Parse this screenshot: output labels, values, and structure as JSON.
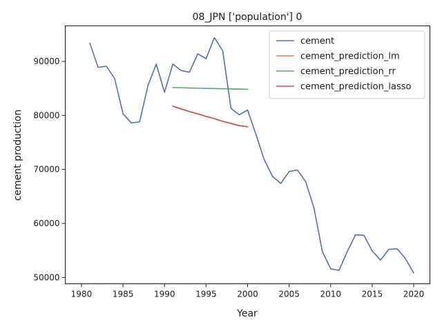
{
  "chart_data": {
    "type": "line",
    "title": "08_JPN ['population'] 0",
    "xlabel": "Year",
    "ylabel": "cement production",
    "xlim": [
      1978.05,
      2021.95
    ],
    "ylim": [
      48820,
      96580
    ],
    "xticks": [
      1980,
      1985,
      1990,
      1995,
      2000,
      2005,
      2010,
      2015,
      2020
    ],
    "yticks": [
      50000,
      60000,
      70000,
      80000,
      90000
    ],
    "xtick_labels": [
      "1980",
      "1985",
      "1990",
      "1995",
      "2000",
      "2005",
      "2010",
      "2015",
      "2020"
    ],
    "ytick_labels": [
      "50000",
      "60000",
      "70000",
      "80000",
      "90000"
    ],
    "grid": false,
    "legend_position": "top-right",
    "series": [
      {
        "name": "cement",
        "color": "#4c72b0",
        "x": [
          1981,
          1982,
          1983,
          1984,
          1985,
          1986,
          1987,
          1988,
          1989,
          1990,
          1991,
          1992,
          1993,
          1994,
          1995,
          1996,
          1997,
          1998,
          1999,
          2000,
          2001,
          2002,
          2003,
          2004,
          2005,
          2006,
          2007,
          2008,
          2009,
          2010,
          2011,
          2012,
          2013,
          2014,
          2015,
          2016,
          2017,
          2018,
          2019,
          2020
        ],
        "y": [
          93400,
          88900,
          89100,
          86800,
          80300,
          78600,
          78800,
          85500,
          89500,
          84300,
          89500,
          88300,
          88000,
          91400,
          90500,
          94400,
          92000,
          81300,
          80100,
          81000,
          76500,
          71800,
          68700,
          67400,
          69600,
          69900,
          67700,
          62800,
          54800,
          51600,
          51300,
          54800,
          57900,
          57800,
          54900,
          53200,
          55200,
          55300,
          53500,
          50800
        ]
      },
      {
        "name": "cement_prediction_lm",
        "color": "#dd8452",
        "x": [
          1991,
          1992,
          1993,
          1994,
          1995,
          1996,
          1997,
          1998,
          1999,
          2000
        ],
        "y": [
          81700,
          81200,
          80700,
          80300,
          79800,
          79400,
          78900,
          78500,
          78100,
          77900
        ]
      },
      {
        "name": "cement_prediction_rr",
        "color": "#55a868",
        "x": [
          1991,
          1992,
          1993,
          1994,
          1995,
          1996,
          1997,
          1998,
          1999,
          2000
        ],
        "y": [
          85150,
          85120,
          85080,
          85040,
          85000,
          84970,
          84930,
          84900,
          84870,
          84830
        ]
      },
      {
        "name": "cement_prediction_lasso",
        "color": "#c44e52",
        "x": [
          1991,
          1992,
          1993,
          1994,
          1995,
          1996,
          1997,
          1998,
          1999,
          2000
        ],
        "y": [
          81700,
          81200,
          80700,
          80300,
          79800,
          79400,
          78900,
          78500,
          78100,
          77900
        ]
      }
    ]
  }
}
